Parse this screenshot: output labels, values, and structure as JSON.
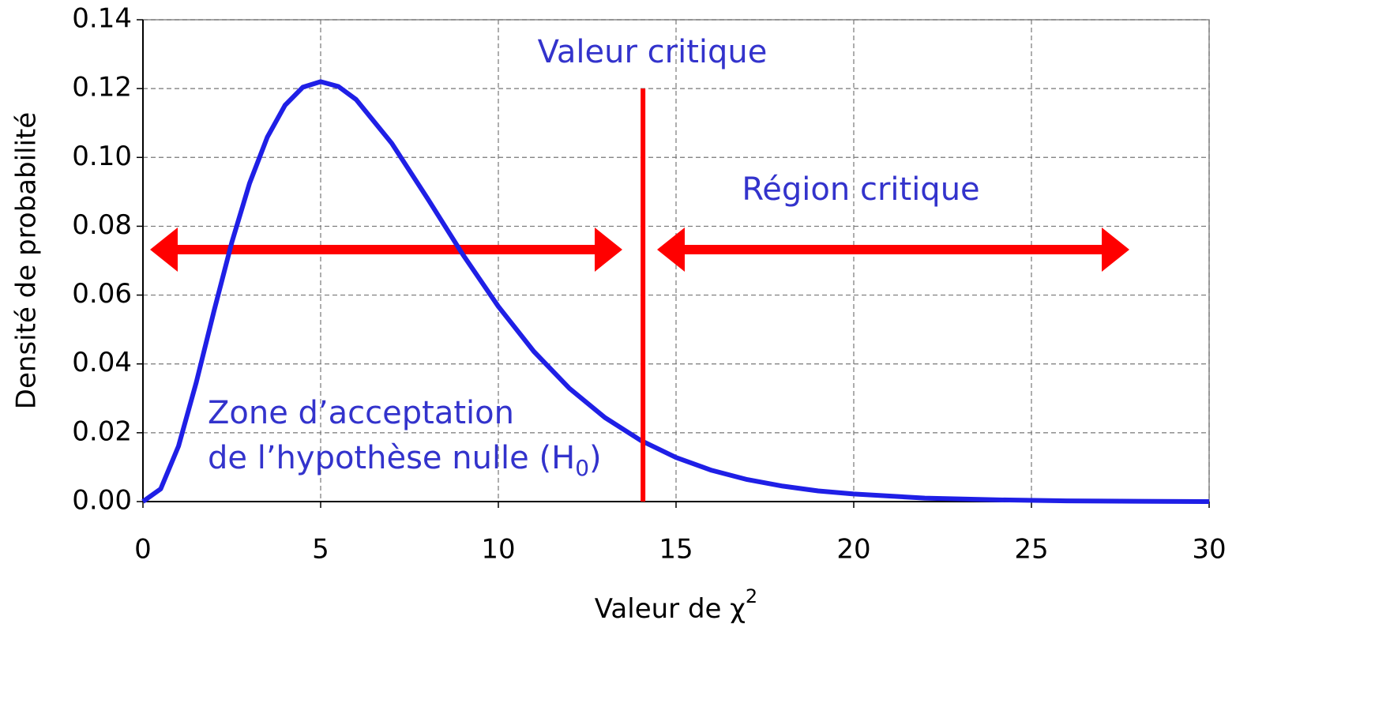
{
  "chart_data": {
    "type": "line",
    "xlabel": "Valeur de χ",
    "xlabel_sup": "2",
    "ylabel": "Densité de probabilité",
    "x": [
      0,
      0.5,
      1,
      1.5,
      2,
      2.5,
      3,
      3.5,
      4,
      4.5,
      5,
      5.5,
      6,
      7,
      8,
      9,
      10,
      11,
      12,
      13,
      14,
      15,
      16,
      17,
      18,
      19,
      20,
      22,
      24,
      26,
      28,
      30
    ],
    "values": [
      0,
      0.0037,
      0.0161,
      0.0346,
      0.0554,
      0.0753,
      0.0925,
      0.1059,
      0.1152,
      0.1204,
      0.122,
      0.1206,
      0.1168,
      0.1041,
      0.0882,
      0.0718,
      0.0567,
      0.0436,
      0.0329,
      0.0244,
      0.0178,
      0.0128,
      0.0091,
      0.0064,
      0.0045,
      0.0031,
      0.0022,
      0.001,
      0.0005,
      0.0002,
      0.0001,
      0
    ],
    "color": "#1f1fe6",
    "critical_value": 14.07,
    "critical_color": "#ff0000",
    "xlim": [
      0,
      30
    ],
    "xticks": [
      0,
      5,
      10,
      15,
      20,
      25,
      30
    ],
    "ylim": [
      0,
      0.14
    ],
    "yticks": [
      {
        "value": 0,
        "label": "0.00"
      },
      {
        "value": 0.02,
        "label": "0.02"
      },
      {
        "value": 0.04,
        "label": "0.04"
      },
      {
        "value": 0.06,
        "label": "0.06"
      },
      {
        "value": 0.08,
        "label": "0.08"
      },
      {
        "value": 0.1,
        "label": "0.10"
      },
      {
        "value": 0.12,
        "label": "0.12"
      },
      {
        "value": 0.14,
        "label": "0.14"
      }
    ],
    "grid": true,
    "annotations": {
      "critical_value": "Valeur critique",
      "critical_region": "Région critique",
      "acceptance_line1": "Zone d’acceptation",
      "acceptance_line2": "de l’hypothèse nulle (H",
      "acceptance_sub": "0",
      "acceptance_end": ")"
    }
  }
}
